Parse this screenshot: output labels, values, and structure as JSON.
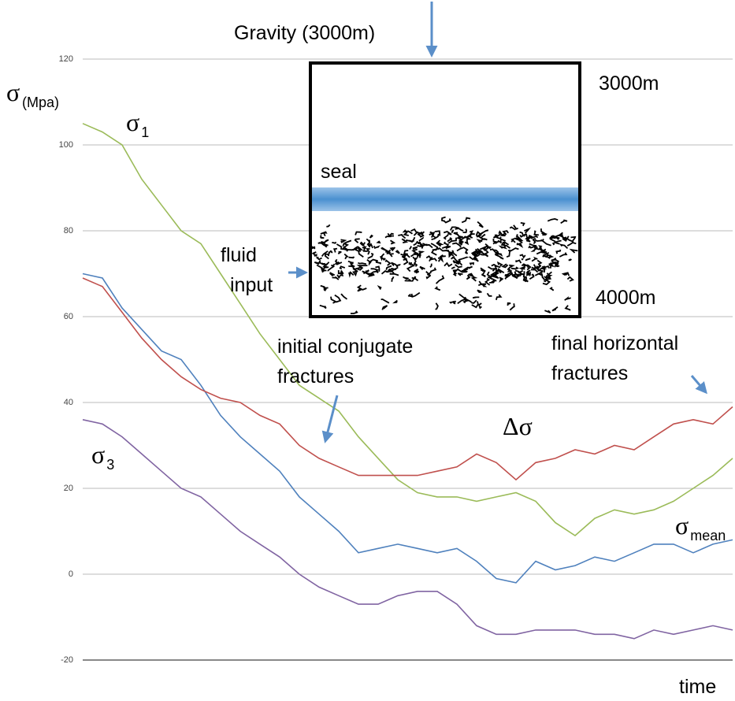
{
  "chart_data": {
    "type": "line",
    "y_label": "σ",
    "y_label_sub": "(Mpa)",
    "x_label": "time",
    "ylim": [
      -20,
      120
    ],
    "yticks": [
      -20,
      0,
      20,
      40,
      60,
      80,
      100,
      120
    ],
    "grid": true,
    "series": [
      {
        "name": "σ",
        "name_sub": "1",
        "color": "#9bbb59",
        "values": [
          105,
          103,
          100,
          92,
          86,
          80,
          77,
          70,
          63,
          56,
          50,
          44,
          41,
          38,
          32,
          27,
          22,
          19,
          18,
          18,
          17,
          18,
          19,
          17,
          12,
          9,
          13,
          15,
          14,
          15,
          17,
          20,
          23,
          27
        ]
      },
      {
        "name": "σ",
        "name_sub": "mean",
        "color": "#4f81bd",
        "values": [
          70,
          69,
          62,
          57,
          52,
          50,
          44,
          37,
          32,
          28,
          24,
          18,
          14,
          10,
          5,
          6,
          7,
          6,
          5,
          6,
          3,
          -1,
          -2,
          3,
          1,
          2,
          4,
          3,
          5,
          7,
          7,
          5,
          7,
          8
        ]
      },
      {
        "name": "Δσ",
        "color": "#c0504d",
        "values": [
          69,
          67,
          61,
          55,
          50,
          46,
          43,
          41,
          40,
          37,
          35,
          30,
          27,
          25,
          23,
          23,
          23,
          23,
          24,
          25,
          28,
          26,
          22,
          26,
          27,
          29,
          28,
          30,
          29,
          32,
          35,
          36,
          35,
          39
        ]
      },
      {
        "name": "σ",
        "name_sub": "3",
        "color": "#8064a2",
        "values": [
          36,
          35,
          32,
          28,
          24,
          20,
          18,
          14,
          10,
          7,
          4,
          0,
          -3,
          -5,
          -7,
          -7,
          -5,
          -4,
          -4,
          -7,
          -12,
          -14,
          -14,
          -13,
          -13,
          -13,
          -14,
          -14,
          -15,
          -13,
          -14,
          -13,
          -12,
          -13
        ]
      }
    ],
    "annotations": {
      "gravity": "Gravity (3000m)",
      "top_depth": "3000m",
      "seal": "seal",
      "fluid_input": [
        "fluid",
        "input"
      ],
      "bottom_depth": "4000m",
      "initial": [
        "initial conjugate",
        "fractures"
      ],
      "final": [
        "final horizontal",
        "fractures"
      ]
    }
  }
}
